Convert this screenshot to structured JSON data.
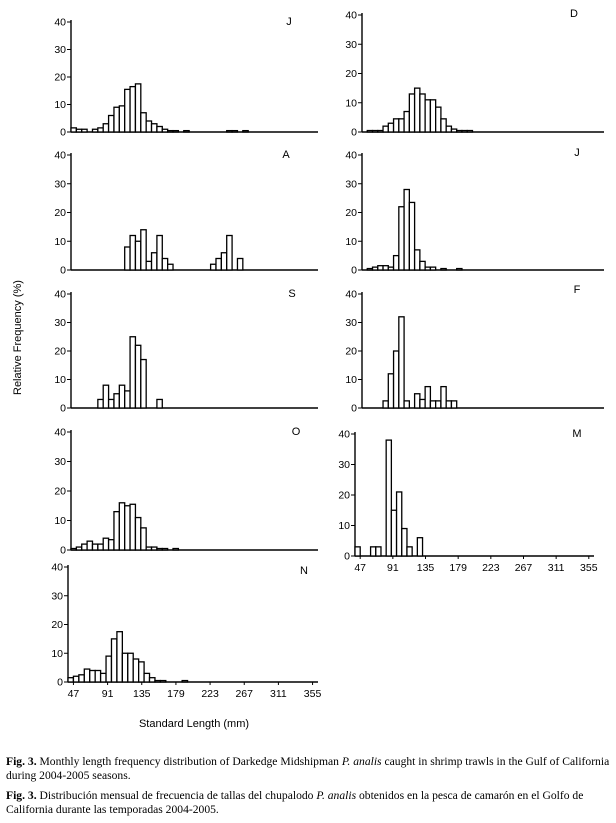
{
  "y_axis_label": "Relative Frequency (%)",
  "x_axis_label": "Standard Length (mm)",
  "caption_en": {
    "fig": "Fig. 3.",
    "pre": " Monthly length frequency distribution of Darkedge Midshipman ",
    "species": "P. analis",
    "post": " caught in shrimp trawls in the Gulf of California during 2004-2005 seasons."
  },
  "caption_es": {
    "fig": "Fig. 3.",
    "pre": " Distribución mensual de frecuencia de tallas del chupalodo ",
    "species": "P. analis",
    "post": " obtenidos en la pesca de camarón en el Golfo de California durante las temporadas 2004-2005."
  },
  "chart_data": [
    {
      "type": "bar",
      "month_label": "J",
      "bin_start": 40,
      "bin_width": 7,
      "ylim": [
        0,
        40
      ],
      "yticks": [
        0,
        10,
        20,
        30,
        40
      ],
      "values": [
        1.5,
        1,
        1,
        0,
        1,
        1.5,
        3,
        6,
        9,
        9.5,
        15.5,
        16.5,
        17.5,
        7,
        4,
        3,
        2,
        1,
        0.5,
        0.5,
        0,
        0.5,
        0,
        0,
        0,
        0,
        0,
        0,
        0,
        0.5,
        0.5,
        0,
        0.5
      ]
    },
    {
      "type": "bar",
      "month_label": "A",
      "bin_start": 40,
      "bin_width": 7,
      "ylim": [
        0,
        40
      ],
      "yticks": [
        0,
        10,
        20,
        30,
        40
      ],
      "values": [
        0,
        0,
        0,
        0,
        0,
        0,
        0,
        0,
        0,
        0,
        8,
        12,
        10,
        14,
        3,
        6,
        12,
        4,
        2,
        0,
        0,
        0,
        0,
        0,
        0,
        0,
        2,
        4,
        6,
        12,
        0,
        4
      ]
    },
    {
      "type": "bar",
      "month_label": "S",
      "bin_start": 40,
      "bin_width": 7,
      "ylim": [
        0,
        40
      ],
      "yticks": [
        0,
        10,
        20,
        30,
        40
      ],
      "values": [
        0,
        0,
        0,
        0,
        0,
        3,
        8,
        3,
        5,
        8,
        6,
        25,
        22,
        17,
        0,
        0,
        3
      ]
    },
    {
      "type": "bar",
      "month_label": "O",
      "bin_start": 40,
      "bin_width": 7,
      "ylim": [
        0,
        40
      ],
      "yticks": [
        0,
        10,
        20,
        30,
        40
      ],
      "values": [
        0.5,
        1,
        2,
        3,
        2,
        2,
        4,
        3.5,
        13,
        16,
        15,
        15.5,
        11,
        7.5,
        1,
        1,
        0.5,
        0.5,
        0,
        0.5
      ]
    },
    {
      "type": "bar",
      "month_label": "N",
      "bin_start": 40,
      "bin_width": 7,
      "ylim": [
        0,
        40
      ],
      "yticks": [
        0,
        10,
        20,
        30,
        40
      ],
      "xticks": [
        47,
        91,
        135,
        179,
        223,
        267,
        311,
        355
      ],
      "values": [
        1.5,
        2,
        2.5,
        4.5,
        4,
        4,
        3,
        9,
        15,
        17.5,
        10,
        10,
        8,
        7,
        3,
        1.5,
        0.5,
        0.5,
        0,
        0,
        0,
        0.5
      ]
    },
    {
      "type": "bar",
      "month_label": "D",
      "bin_start": 40,
      "bin_width": 7,
      "ylim": [
        0,
        40
      ],
      "yticks": [
        0,
        10,
        20,
        30,
        40
      ],
      "values": [
        0,
        0.5,
        0.5,
        0.5,
        2,
        3,
        4.5,
        4.5,
        7,
        13,
        15,
        13,
        11,
        11,
        8.5,
        4.5,
        2,
        1,
        0.5,
        0.5,
        0.5
      ]
    },
    {
      "type": "bar",
      "month_label": "J",
      "bin_start": 40,
      "bin_width": 7,
      "ylim": [
        0,
        40
      ],
      "yticks": [
        0,
        10,
        20,
        30,
        40
      ],
      "values": [
        0,
        0.5,
        1,
        1.5,
        1.5,
        1,
        5,
        22,
        28,
        23.5,
        7,
        3,
        1,
        1,
        0,
        0.5,
        0,
        0,
        0.5
      ]
    },
    {
      "type": "bar",
      "month_label": "F",
      "bin_start": 40,
      "bin_width": 7,
      "ylim": [
        0,
        40
      ],
      "yticks": [
        0,
        10,
        20,
        30,
        40
      ],
      "values": [
        0,
        0,
        0,
        0,
        2.5,
        12,
        20,
        32,
        2.5,
        0,
        5,
        3,
        7.5,
        2.5,
        2.5,
        7.5,
        2.5,
        2.5
      ]
    },
    {
      "type": "bar",
      "month_label": "M",
      "bin_start": 40,
      "bin_width": 7,
      "ylim": [
        0,
        40
      ],
      "yticks": [
        0,
        10,
        20,
        30,
        40
      ],
      "xticks": [
        47,
        91,
        135,
        179,
        223,
        267,
        311,
        355
      ],
      "values": [
        3,
        0,
        0,
        3,
        3,
        0,
        38,
        15,
        21,
        9,
        3,
        0,
        6
      ]
    }
  ]
}
